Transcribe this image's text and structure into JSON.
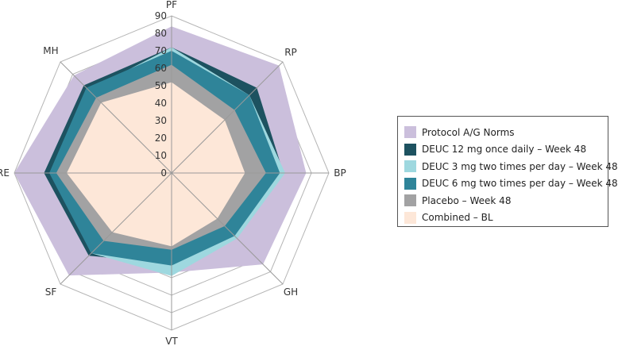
{
  "chart_data": {
    "type": "radar",
    "title": "",
    "axes": [
      "PF",
      "RP",
      "BP",
      "GH",
      "VT",
      "SF",
      "RE",
      "MH"
    ],
    "rlim": [
      0,
      90
    ],
    "ticks": [
      "0",
      "10",
      "20",
      "30",
      "40",
      "50",
      "60",
      "70",
      "80",
      "90"
    ],
    "tick_values": [
      0,
      10,
      20,
      30,
      40,
      50,
      60,
      70,
      80,
      90
    ],
    "legend_position": "right",
    "series": [
      {
        "name": "Protocol A/G Norms",
        "color": "#cbbfdc",
        "values": [
          84,
          87,
          77,
          74,
          57,
          83,
          90,
          79
        ]
      },
      {
        "name": "DEUC 12 mg once daily – Week 48",
        "color": "#1d5260",
        "values": [
          72,
          69,
          64,
          50,
          52,
          67,
          73,
          71
        ]
      },
      {
        "name": "DEUC 3 mg two times per day – Week 48",
        "color": "#9ed8df",
        "values": [
          72,
          63,
          65,
          53,
          59,
          65,
          69,
          67
        ]
      },
      {
        "name": "DEUC 6 mg two times per day – Week 48",
        "color": "#2f8499",
        "values": [
          70,
          63,
          62,
          51,
          53,
          65,
          70,
          69
        ]
      },
      {
        "name": "Placebo – Week 48",
        "color": "#a2a2a3",
        "values": [
          62,
          51,
          54,
          43,
          44,
          55,
          66,
          61
        ]
      },
      {
        "name": "Combined – BL",
        "color": "#fde7d8",
        "values": [
          52,
          43,
          42,
          37,
          42,
          48,
          60,
          57
        ]
      }
    ]
  }
}
